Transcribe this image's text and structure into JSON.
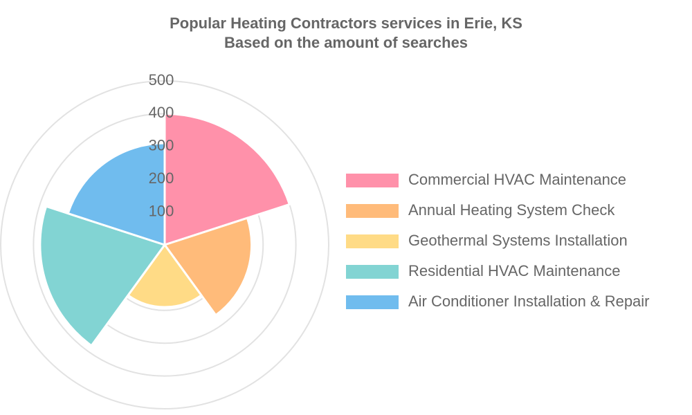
{
  "chart_data": {
    "type": "polarArea",
    "title": [
      "Popular Heating Contractors services in Erie, KS",
      "Based on the amount of searches"
    ],
    "categories": [
      "Commercial HVAC Maintenance",
      "Annual Heating System Check",
      "Geothermal Systems Installation",
      "Residential HVAC Maintenance",
      "Air Conditioner Installation & Repair"
    ],
    "values": [
      400,
      265,
      190,
      380,
      310
    ],
    "colors": [
      "#ff91aa",
      "#ffbb7a",
      "#ffdb86",
      "#82d4d3",
      "#70bcee"
    ],
    "rlim": [
      0,
      500
    ],
    "rticks": [
      100,
      200,
      300,
      400,
      500
    ],
    "grid": true,
    "legend": "right"
  }
}
